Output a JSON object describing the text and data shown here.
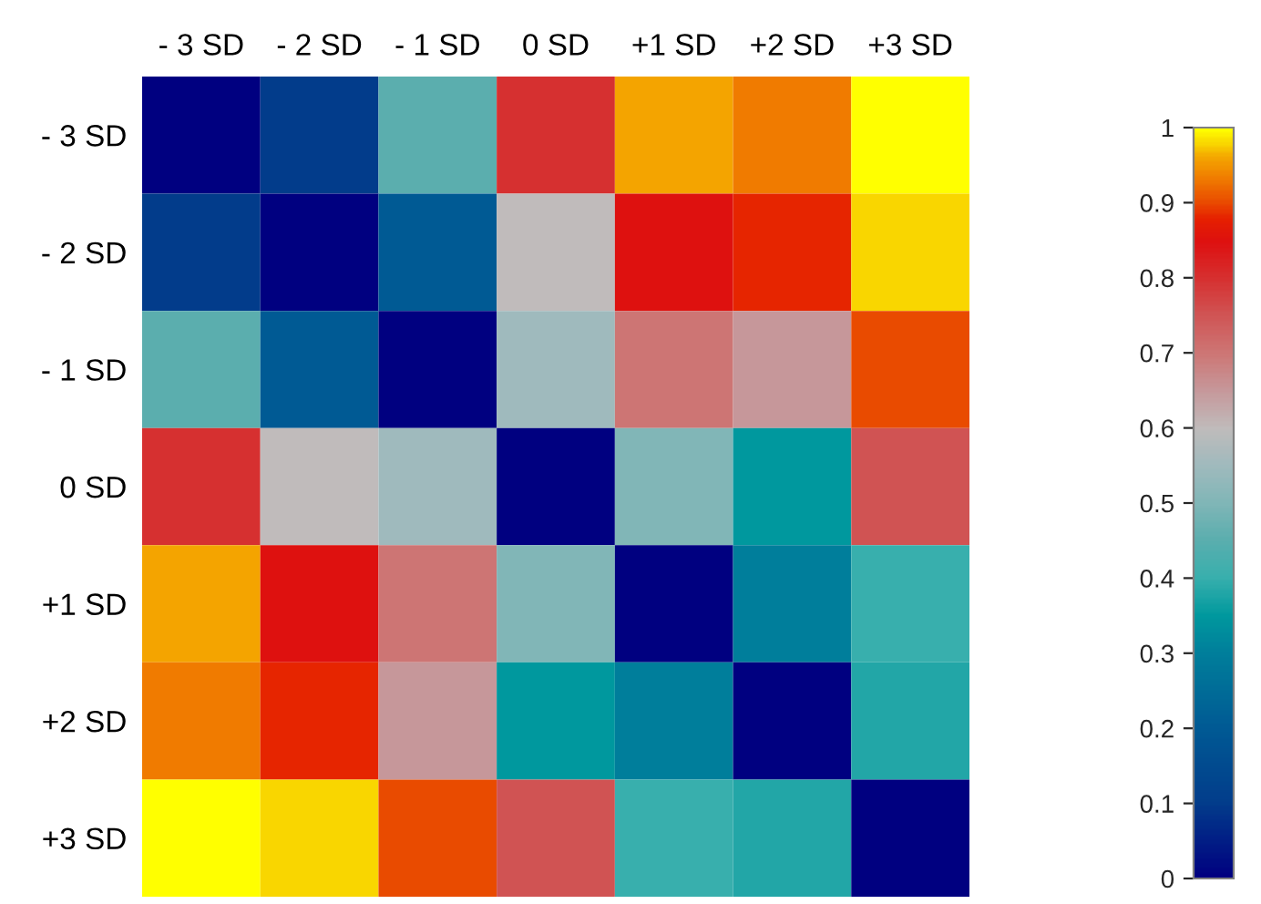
{
  "chart_data": {
    "type": "heatmap",
    "categories": [
      "- 3 SD",
      "- 2 SD",
      "- 1 SD",
      "0 SD",
      "+1 SD",
      "+2 SD",
      "+3 SD"
    ],
    "y_categories": [
      "- 3 SD",
      "- 2 SD",
      "- 1 SD",
      "0 SD",
      "+1 SD",
      "+2 SD",
      "+3 SD"
    ],
    "cells": [
      [
        0,
        0.1,
        0.45,
        0.8,
        0.96,
        0.93,
        1
      ],
      [
        0.1,
        0,
        0.2,
        0.6,
        0.85,
        0.88,
        0.98
      ],
      [
        0.45,
        0.2,
        0,
        0.55,
        0.7,
        0.65,
        0.9
      ],
      [
        0.8,
        0.6,
        0.55,
        0,
        0.5,
        0.35,
        0.75
      ],
      [
        0.96,
        0.85,
        0.7,
        0.5,
        0,
        0.3,
        0.4
      ],
      [
        0.93,
        0.88,
        0.65,
        0.35,
        0.3,
        0,
        0.38
      ],
      [
        1,
        0.98,
        0.9,
        0.75,
        0.4,
        0.38,
        0
      ]
    ],
    "clim": [
      0,
      1
    ],
    "cticks": [
      0,
      0.1,
      0.2,
      0.3,
      0.4,
      0.5,
      0.6,
      0.7,
      0.8,
      0.9,
      1
    ]
  }
}
